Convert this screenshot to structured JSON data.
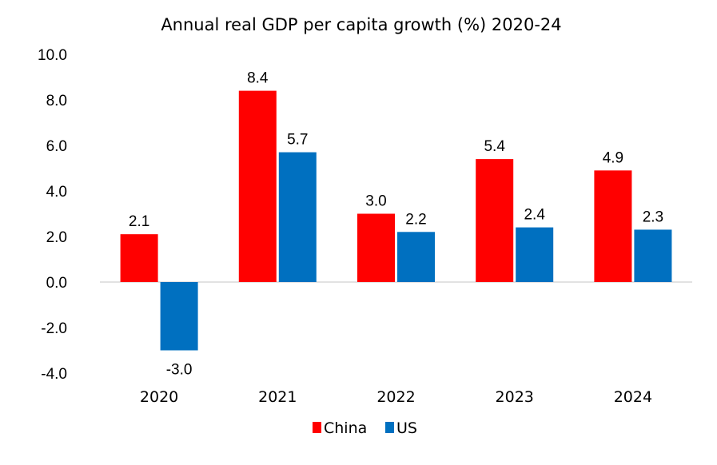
{
  "chart_data": {
    "type": "bar",
    "title": "Annual real GDP per capita growth (%) 2020-24",
    "xlabel": "",
    "ylabel": "",
    "categories": [
      "2020",
      "2021",
      "2022",
      "2023",
      "2024"
    ],
    "series": [
      {
        "name": "China",
        "color": "#ff0000",
        "values": [
          2.1,
          8.4,
          3.0,
          5.4,
          4.9
        ]
      },
      {
        "name": "US",
        "color": "#0070c0",
        "values": [
          -3.0,
          5.7,
          2.2,
          2.4,
          2.3
        ]
      }
    ],
    "ylim": [
      -4.0,
      10.0
    ],
    "yticks": [
      "10.0",
      "8.0",
      "6.0",
      "4.0",
      "2.0",
      "0.0",
      "-2.0",
      "-4.0"
    ],
    "data_labels": true,
    "grid": false,
    "legend": "bottom"
  }
}
